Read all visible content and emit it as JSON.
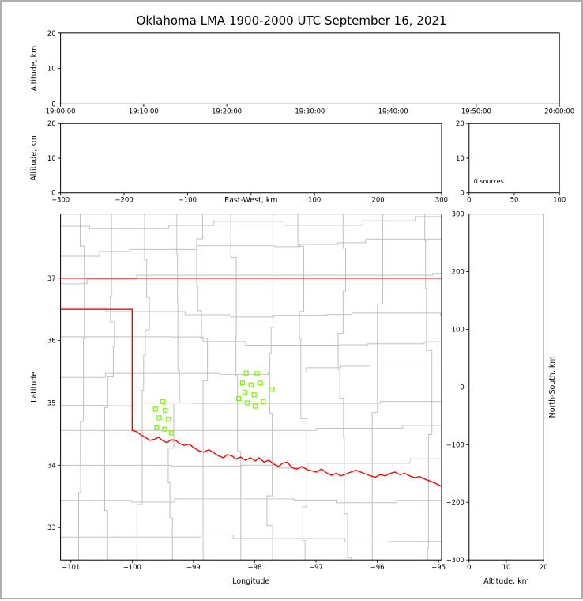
{
  "title": "Oklahoma LMA 1900-2000 UTC September 16, 2021",
  "chart_data": [
    {
      "id": "time_height",
      "type": "scatter",
      "xlabel": "",
      "ylabel": "Altitude, km",
      "x_ticks": [
        "19:00:00",
        "19:10:00",
        "19:20:00",
        "19:30:00",
        "19:40:00",
        "19:50:00",
        "20:00:00"
      ],
      "xlim": [
        0,
        6
      ],
      "ylim": [
        0,
        20
      ],
      "y_ticks": [
        0,
        10,
        20
      ],
      "points": []
    },
    {
      "id": "ew_height",
      "type": "scatter",
      "xlabel": "East-West, km",
      "ylabel": "Altitude, km",
      "xlim": [
        -300,
        300
      ],
      "x_ticks": [
        -300,
        -200,
        -100,
        0,
        100,
        200,
        300
      ],
      "ylim": [
        0,
        20
      ],
      "y_ticks": [
        0,
        10,
        20
      ],
      "points": []
    },
    {
      "id": "alt_histogram",
      "type": "line",
      "xlabel": "",
      "ylabel": "",
      "xlim": [
        0,
        100
      ],
      "x_ticks": [
        0,
        50,
        100
      ],
      "ylim": [
        0,
        20
      ],
      "y_ticks": [
        0,
        10,
        20
      ],
      "annotation": "0 sources",
      "points": []
    },
    {
      "id": "plan_view",
      "type": "scatter",
      "xlabel": "Longitude",
      "ylabel": "Latitude",
      "xlim": [
        -101.17,
        -94.95
      ],
      "x_ticks": [
        -101,
        -100,
        -99,
        -98,
        -97,
        -96,
        -95
      ],
      "ylim": [
        32.48,
        38.03
      ],
      "y_ticks": [
        33,
        34,
        35,
        36,
        37
      ],
      "station_color": "#7CFC00",
      "state_border_color": "#ff0000",
      "county_color": "#c0c0c0",
      "stations": [
        [
          -99.5,
          35.02
        ],
        [
          -99.62,
          34.9
        ],
        [
          -99.46,
          34.88
        ],
        [
          -99.56,
          34.76
        ],
        [
          -99.41,
          34.74
        ],
        [
          -99.6,
          34.6
        ],
        [
          -99.47,
          34.58
        ],
        [
          -99.36,
          34.52
        ],
        [
          -98.14,
          35.48
        ],
        [
          -97.96,
          35.47
        ],
        [
          -98.2,
          35.32
        ],
        [
          -98.06,
          35.29
        ],
        [
          -97.91,
          35.32
        ],
        [
          -98.16,
          35.17
        ],
        [
          -98.01,
          35.13
        ],
        [
          -97.72,
          35.22
        ],
        [
          -98.12,
          35.0
        ],
        [
          -97.99,
          34.95
        ],
        [
          -97.86,
          35.02
        ],
        [
          -98.26,
          35.07
        ]
      ],
      "state_border": {
        "north": [
          [
            -101.17,
            37.0
          ],
          [
            -94.95,
            37.0
          ]
        ],
        "main": [
          [
            -101.17,
            36.5
          ],
          [
            -100.0,
            36.5
          ],
          [
            -100.0,
            34.56
          ],
          [
            -99.93,
            34.54
          ],
          [
            -99.86,
            34.49
          ],
          [
            -99.79,
            34.45
          ],
          [
            -99.71,
            34.4
          ],
          [
            -99.63,
            34.42
          ],
          [
            -99.57,
            34.45
          ],
          [
            -99.51,
            34.4
          ],
          [
            -99.43,
            34.36
          ],
          [
            -99.37,
            34.41
          ],
          [
            -99.29,
            34.4
          ],
          [
            -99.23,
            34.35
          ],
          [
            -99.15,
            34.32
          ],
          [
            -99.07,
            34.34
          ],
          [
            -98.99,
            34.28
          ],
          [
            -98.91,
            34.23
          ],
          [
            -98.83,
            34.21
          ],
          [
            -98.75,
            34.25
          ],
          [
            -98.67,
            34.2
          ],
          [
            -98.59,
            34.15
          ],
          [
            -98.51,
            34.12
          ],
          [
            -98.45,
            34.17
          ],
          [
            -98.37,
            34.15
          ],
          [
            -98.31,
            34.1
          ],
          [
            -98.23,
            34.13
          ],
          [
            -98.15,
            34.08
          ],
          [
            -98.07,
            34.12
          ],
          [
            -97.99,
            34.07
          ],
          [
            -97.93,
            34.12
          ],
          [
            -97.85,
            34.05
          ],
          [
            -97.77,
            34.08
          ],
          [
            -97.69,
            34.02
          ],
          [
            -97.61,
            33.98
          ],
          [
            -97.55,
            34.03
          ],
          [
            -97.47,
            34.05
          ],
          [
            -97.39,
            33.96
          ],
          [
            -97.31,
            33.94
          ],
          [
            -97.23,
            33.98
          ],
          [
            -97.15,
            33.93
          ],
          [
            -97.07,
            33.91
          ],
          [
            -96.99,
            33.89
          ],
          [
            -96.91,
            33.94
          ],
          [
            -96.83,
            33.88
          ],
          [
            -96.75,
            33.84
          ],
          [
            -96.67,
            33.87
          ],
          [
            -96.59,
            33.83
          ],
          [
            -96.51,
            33.86
          ],
          [
            -96.43,
            33.89
          ],
          [
            -96.35,
            33.92
          ],
          [
            -96.27,
            33.89
          ],
          [
            -96.19,
            33.86
          ],
          [
            -96.11,
            33.83
          ],
          [
            -96.03,
            33.81
          ],
          [
            -95.95,
            33.85
          ],
          [
            -95.87,
            33.83
          ],
          [
            -95.79,
            33.87
          ],
          [
            -95.71,
            33.89
          ],
          [
            -95.63,
            33.85
          ],
          [
            -95.55,
            33.87
          ],
          [
            -95.47,
            33.83
          ],
          [
            -95.39,
            33.8
          ],
          [
            -95.31,
            33.82
          ],
          [
            -95.23,
            33.78
          ],
          [
            -95.15,
            33.75
          ],
          [
            -95.07,
            33.72
          ],
          [
            -94.95,
            33.66
          ]
        ]
      }
    },
    {
      "id": "ns_height",
      "type": "scatter",
      "xlabel": "Altitude, km",
      "ylabel": "North-South, km",
      "xlim": [
        0,
        20
      ],
      "x_ticks": [
        0,
        10,
        20
      ],
      "ylim": [
        -300,
        300
      ],
      "y_ticks": [
        -300,
        -200,
        -100,
        0,
        100,
        200,
        300
      ],
      "points": []
    }
  ]
}
